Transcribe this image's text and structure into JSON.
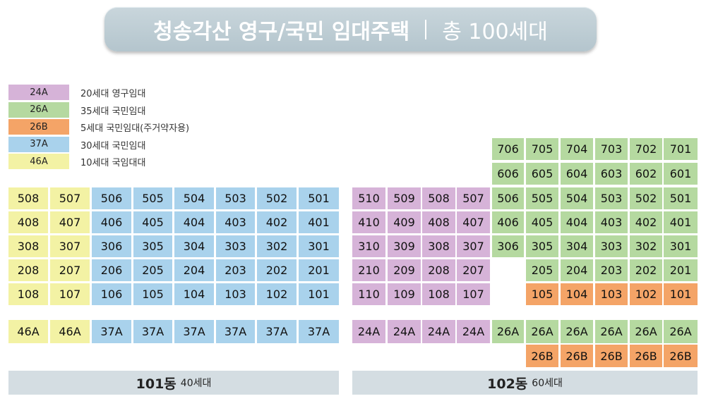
{
  "title": {
    "main": "청송각산 영구/국민 임대주택",
    "total": "총 100세대"
  },
  "legend": [
    {
      "type": "24A",
      "desc": "20세대 영구임대",
      "color": "#d6b3d8"
    },
    {
      "type": "26A",
      "desc": "35세대 국민임대",
      "color": "#b5d9a0"
    },
    {
      "type": "26B",
      "desc": "5세대 국민임대(주거약자용)",
      "color": "#f4a467"
    },
    {
      "type": "37A",
      "desc": "30세대 국민임대",
      "color": "#a9d2ec"
    },
    {
      "type": "46A",
      "desc": "10세대 국임대대",
      "color": "#f3f2a4"
    }
  ],
  "building101": {
    "name": "101동",
    "units": "40세대",
    "rows": [
      [
        "508",
        "507",
        "506",
        "505",
        "504",
        "503",
        "502",
        "501"
      ],
      [
        "408",
        "407",
        "406",
        "405",
        "404",
        "403",
        "402",
        "401"
      ],
      [
        "308",
        "307",
        "306",
        "305",
        "304",
        "303",
        "302",
        "301"
      ],
      [
        "208",
        "207",
        "206",
        "205",
        "204",
        "203",
        "202",
        "201"
      ],
      [
        "108",
        "107",
        "106",
        "105",
        "104",
        "103",
        "102",
        "101"
      ]
    ],
    "types": [
      "46A",
      "46A",
      "37A",
      "37A",
      "37A",
      "37A",
      "37A",
      "37A"
    ]
  },
  "building102": {
    "name": "102동",
    "units": "60세대",
    "rows": [
      [
        "",
        "",
        "",
        "",
        "706",
        "705",
        "704",
        "703",
        "702",
        "701"
      ],
      [
        "",
        "",
        "",
        "",
        "606",
        "605",
        "604",
        "603",
        "602",
        "601"
      ],
      [
        "510",
        "509",
        "508",
        "507",
        "506",
        "505",
        "504",
        "503",
        "502",
        "501"
      ],
      [
        "410",
        "409",
        "408",
        "407",
        "406",
        "405",
        "404",
        "403",
        "402",
        "401"
      ],
      [
        "310",
        "309",
        "308",
        "307",
        "306",
        "305",
        "304",
        "303",
        "302",
        "301"
      ],
      [
        "210",
        "209",
        "208",
        "207",
        "",
        "205",
        "204",
        "203",
        "202",
        "201"
      ],
      [
        "110",
        "109",
        "108",
        "107",
        "",
        "105",
        "104",
        "103",
        "102",
        "101"
      ]
    ],
    "types": [
      "24A",
      "24A",
      "24A",
      "24A",
      "26A",
      "26A",
      "26A",
      "26A",
      "26A",
      "26A"
    ],
    "types2": [
      "",
      "",
      "",
      "",
      "",
      "26B",
      "26B",
      "26B",
      "26B",
      "26B"
    ]
  }
}
